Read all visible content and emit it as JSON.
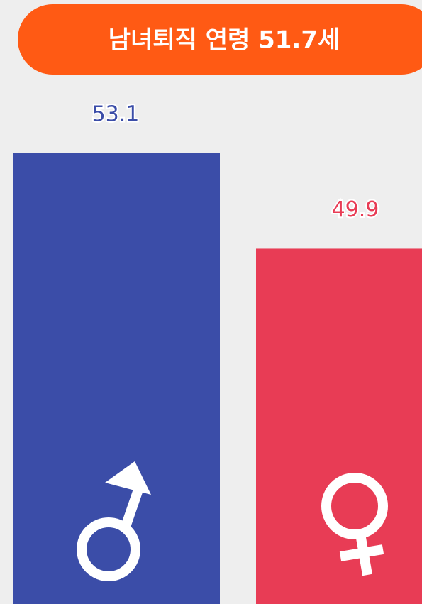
{
  "chart_data": {
    "type": "bar",
    "title": "남녀퇴직 연령 51.7세",
    "categories": [
      null,
      null
    ],
    "values": [
      53.1,
      49.9
    ],
    "colors": [
      "#3b4da8",
      "#e83c55"
    ],
    "ylim": [
      38,
      54
    ]
  }
}
